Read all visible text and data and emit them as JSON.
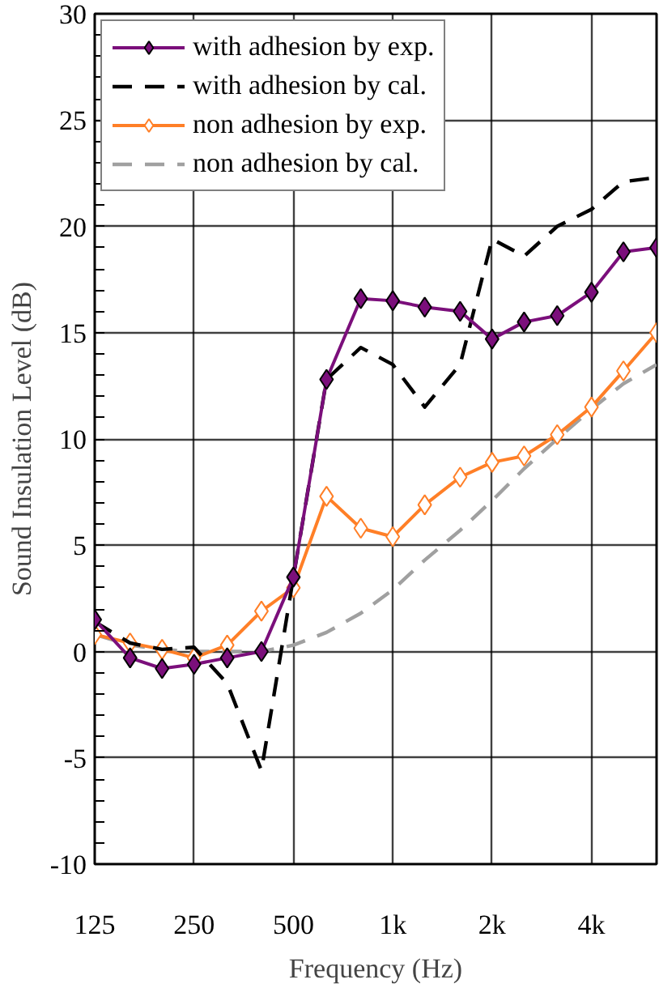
{
  "chart_data": {
    "type": "line",
    "xlabel": "Frequency (Hz)",
    "ylabel": "Sound Insulation Level (dB)",
    "log": "x",
    "x": [
      125,
      160,
      200,
      250,
      315,
      400,
      500,
      630,
      800,
      1000,
      1250,
      1600,
      2000,
      2500,
      3150,
      4000,
      5000,
      6300
    ],
    "xlim": [
      125,
      6300
    ],
    "xticks": [
      125,
      250,
      500,
      {
        "value": 1000,
        "label": "1k"
      },
      {
        "value": 2000,
        "label": "2k"
      },
      {
        "value": 4000,
        "label": "4k"
      }
    ],
    "ylim": [
      -10,
      30
    ],
    "yticks": [
      -10,
      -5,
      0,
      5,
      10,
      15,
      20,
      25,
      30
    ],
    "grid": true,
    "legend": "top left",
    "series": [
      {
        "name": "with adhesion by exp.",
        "color": "#7b0f7b",
        "marker": "diamond",
        "line_style": "solid",
        "values": [
          1.5,
          -0.3,
          -0.8,
          -0.6,
          -0.3,
          0.0,
          3.5,
          12.8,
          16.6,
          16.5,
          16.2,
          16.0,
          14.7,
          15.5,
          15.8,
          16.9,
          18.8,
          19.0
        ]
      },
      {
        "name": "with adhesion by cal.",
        "color": "#000000",
        "marker": "none",
        "line_style": "dashed",
        "values": [
          1.4,
          0.4,
          0.1,
          0.2,
          -1.5,
          -5.6,
          3.5,
          12.8,
          14.3,
          13.5,
          11.5,
          13.5,
          19.4,
          18.6,
          20.0,
          20.8,
          22.1,
          22.3
        ]
      },
      {
        "name": "non adhesion by exp.",
        "color": "#ff7f27",
        "marker": "diamond",
        "line_style": "solid",
        "values": [
          0.8,
          0.4,
          0.1,
          -0.3,
          0.3,
          1.9,
          3.0,
          7.3,
          5.8,
          5.4,
          6.9,
          8.2,
          8.9,
          9.2,
          10.2,
          11.5,
          13.2,
          15.0
        ]
      },
      {
        "name": "non adhesion by cal.",
        "color": "#a0a0a0",
        "marker": "none",
        "line_style": "dashed",
        "values": [
          0.8,
          0.3,
          0.1,
          0.0,
          0.0,
          0.0,
          0.3,
          0.9,
          1.8,
          2.9,
          4.3,
          5.7,
          7.1,
          8.6,
          10.0,
          11.4,
          12.6,
          13.5
        ]
      }
    ]
  }
}
